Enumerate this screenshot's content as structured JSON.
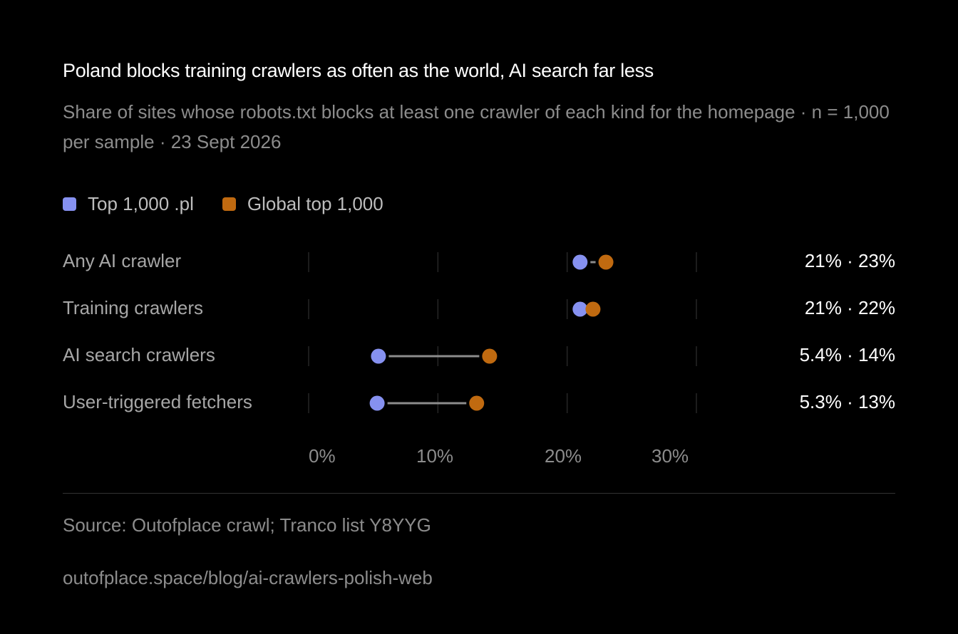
{
  "header": {
    "title": "Poland blocks training crawlers as often as the world, AI search far less",
    "subtitle": "Share of sites whose robots.txt blocks at least one crawler of each kind for the homepage · n = 1,000 per sample · 23 Sept 2026"
  },
  "legend": {
    "items": [
      {
        "label": "Top 1,000 .pl",
        "color": "#8691f0"
      },
      {
        "label": "Global top 1,000",
        "color": "#c06a10"
      }
    ]
  },
  "chart_data": {
    "type": "dumbbell",
    "categories": [
      "Any AI crawler",
      "Training crawlers",
      "AI search crawlers",
      "User-triggered fetchers"
    ],
    "series": [
      {
        "name": "Top 1,000 .pl",
        "values": [
          21,
          21,
          5.4,
          5.3
        ],
        "color": "#8691f0"
      },
      {
        "name": "Global top 1,000",
        "values": [
          23,
          22,
          14,
          13
        ],
        "color": "#c06a10"
      }
    ],
    "value_labels": [
      "21% · 23%",
      "21% · 22%",
      "5.4% · 14%",
      "5.3% · 13%"
    ],
    "xticks": [
      "0%",
      "10%",
      "20%",
      "30%"
    ],
    "xlim": [
      0,
      30
    ],
    "grid": true,
    "connector_color": "#8c8c8c"
  },
  "footer": {
    "source": "Source: Outofplace crawl; Tranco list Y8YYG",
    "url": "outofplace.space/blog/ai-crawlers-polish-web"
  }
}
